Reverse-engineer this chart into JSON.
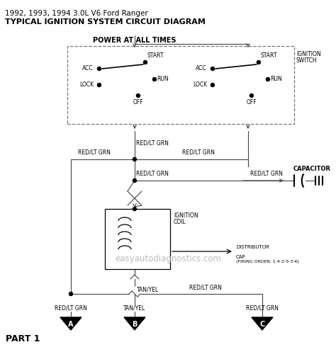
{
  "title_line1": "1992, 1993, 1994 3.0L V6 Ford Ranger",
  "title_line2": "TYPICAL IGNITION SYSTEM CIRCUIT DIAGRAM",
  "bg_color": "#ffffff",
  "watermark": "easyautodiagnostics.com",
  "watermark_color": "#bbbbbb",
  "part_label": "PART 1",
  "wire_red_lt_grn": "RED/LT GRN",
  "wire_tan_yel": "TAN/YEL",
  "ignition_switch_label": [
    "IGNITION",
    "SWITCH"
  ],
  "power_label": "POWER AT ALL TIMES",
  "capacitor_label": "CAPACITOR",
  "ignition_coil_label": [
    "IGNITION",
    "COIL"
  ],
  "distributor_label": [
    "DISTRIBUTOR",
    "CAP",
    "(FIRING ORDER: 1-4-2-5-3-6)"
  ],
  "connectors": [
    "A",
    "B",
    "C"
  ],
  "switch_labels": [
    "ACC",
    "START",
    "LOCK",
    "RUN",
    "OFF"
  ]
}
